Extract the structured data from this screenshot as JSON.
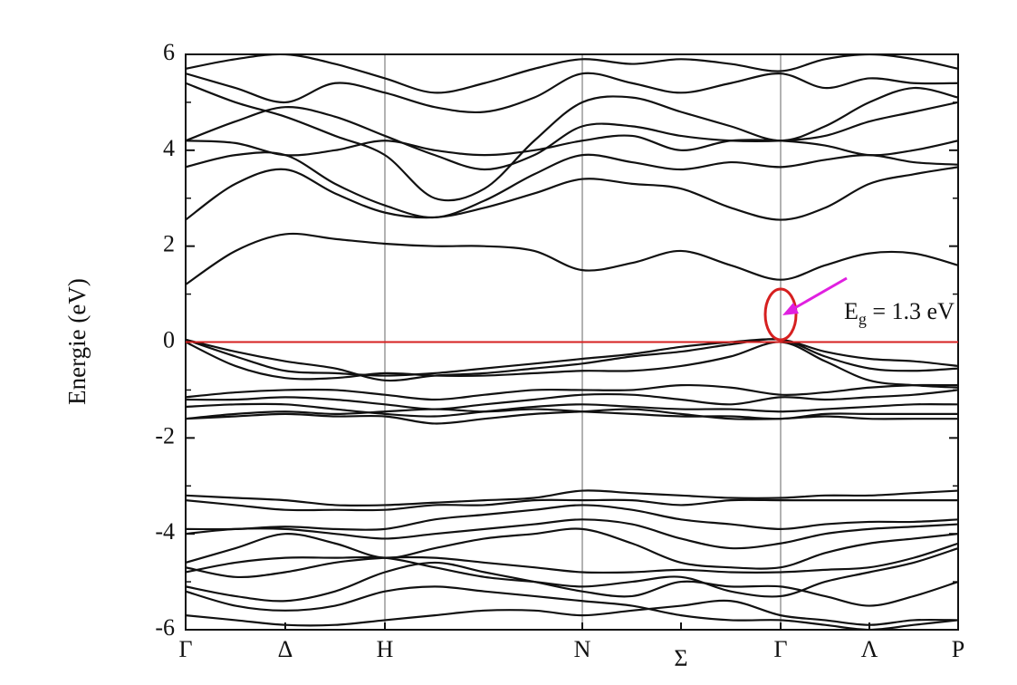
{
  "chart_data": {
    "type": "line",
    "y_label": "Energie (eV)",
    "xlim": [
      0,
      8.53
    ],
    "ylim": [
      -6,
      6
    ],
    "yticks": [
      -6,
      -4,
      -2,
      0,
      2,
      4,
      6
    ],
    "yminor": [
      -5,
      -3,
      -1,
      1,
      3,
      5
    ],
    "xticks": [
      {
        "value": 0,
        "label": "Γ"
      },
      {
        "value": 1.1,
        "label": "Δ"
      },
      {
        "value": 2.2,
        "label": "H"
      },
      {
        "value": 4.38,
        "label": "N"
      },
      {
        "value": 5.47,
        "label": "Σ"
      },
      {
        "value": 6.57,
        "label": "Γ"
      },
      {
        "value": 7.55,
        "label": "Λ"
      },
      {
        "value": 8.53,
        "label": "P"
      }
    ],
    "vlines": [
      2.2,
      4.38,
      6.57
    ],
    "reference_line": {
      "value": 0,
      "color": "#d62020"
    },
    "annotation": {
      "main": "E",
      "sub": "g",
      "rest": " = 1.3 eV",
      "color": "#e020e0",
      "circle_color": "#d62020"
    },
    "color": "#111111",
    "x": [
      0,
      0.55,
      1.1,
      1.65,
      2.2,
      2.75,
      3.3,
      3.85,
      4.38,
      4.93,
      5.47,
      6.02,
      6.57,
      7.06,
      7.55,
      8.04,
      8.53
    ],
    "series": [
      {
        "values": [
          1.2,
          1.9,
          2.25,
          2.15,
          2.05,
          2.0,
          2.0,
          1.9,
          1.5,
          1.65,
          1.9,
          1.6,
          1.3,
          1.6,
          1.85,
          1.85,
          1.6
        ]
      },
      {
        "values": [
          2.55,
          3.3,
          3.6,
          3.1,
          2.7,
          2.6,
          2.8,
          3.1,
          3.4,
          3.3,
          3.2,
          2.8,
          2.55,
          2.8,
          3.3,
          3.5,
          3.65
        ]
      },
      {
        "values": [
          3.65,
          3.9,
          3.9,
          3.3,
          2.85,
          2.6,
          2.95,
          3.5,
          3.9,
          3.75,
          3.6,
          3.75,
          3.65,
          3.8,
          3.9,
          3.75,
          3.7
        ]
      },
      {
        "values": [
          4.2,
          4.15,
          3.9,
          4.0,
          4.2,
          4.0,
          3.9,
          4.0,
          4.2,
          4.3,
          4.0,
          4.2,
          4.2,
          4.1,
          3.9,
          4.0,
          4.2
        ]
      },
      {
        "values": [
          4.2,
          4.6,
          4.9,
          4.7,
          4.3,
          3.9,
          3.6,
          3.9,
          4.5,
          4.5,
          4.3,
          4.2,
          4.2,
          4.3,
          4.6,
          4.8,
          5.0
        ]
      },
      {
        "values": [
          5.4,
          5.0,
          4.7,
          4.3,
          3.9,
          3.0,
          3.2,
          4.2,
          5.0,
          5.1,
          4.8,
          4.5,
          4.2,
          4.5,
          5.0,
          5.3,
          5.1
        ]
      },
      {
        "values": [
          5.6,
          5.3,
          5.0,
          5.4,
          5.2,
          4.9,
          4.8,
          5.1,
          5.6,
          5.4,
          5.2,
          5.4,
          5.6,
          5.3,
          5.5,
          5.4,
          5.4
        ]
      },
      {
        "values": [
          5.7,
          5.9,
          6.0,
          5.8,
          5.5,
          5.2,
          5.4,
          5.7,
          5.9,
          5.8,
          5.9,
          5.8,
          5.65,
          5.9,
          6.0,
          5.9,
          5.7
        ]
      },
      {
        "values": [
          0.05,
          -0.3,
          -0.6,
          -0.65,
          -0.7,
          -0.65,
          -0.55,
          -0.45,
          -0.35,
          -0.25,
          -0.1,
          0.0,
          0.05,
          -0.2,
          -0.35,
          -0.4,
          -0.5
        ]
      },
      {
        "values": [
          0.05,
          -0.2,
          -0.4,
          -0.55,
          -0.8,
          -0.7,
          -0.65,
          -0.55,
          -0.45,
          -0.3,
          -0.2,
          -0.05,
          0.05,
          -0.3,
          -0.55,
          -0.6,
          -0.55
        ]
      },
      {
        "values": [
          0.0,
          -0.5,
          -0.75,
          -0.75,
          -0.65,
          -0.7,
          -0.7,
          -0.65,
          -0.6,
          -0.6,
          -0.5,
          -0.3,
          0.0,
          -0.4,
          -0.8,
          -0.9,
          -0.95
        ]
      },
      {
        "values": [
          -1.15,
          -1.05,
          -1.0,
          -1.0,
          -1.1,
          -1.2,
          -1.1,
          -1.0,
          -1.0,
          -1.0,
          -0.9,
          -0.95,
          -1.1,
          -1.05,
          -0.95,
          -0.9,
          -0.9
        ]
      },
      {
        "values": [
          -1.2,
          -1.2,
          -1.15,
          -1.2,
          -1.3,
          -1.4,
          -1.3,
          -1.2,
          -1.1,
          -1.1,
          -1.2,
          -1.3,
          -1.15,
          -1.2,
          -1.15,
          -1.1,
          -1.0
        ]
      },
      {
        "values": [
          -1.35,
          -1.3,
          -1.3,
          -1.4,
          -1.5,
          -1.55,
          -1.45,
          -1.35,
          -1.3,
          -1.35,
          -1.4,
          -1.4,
          -1.45,
          -1.4,
          -1.35,
          -1.3,
          -1.3
        ]
      },
      {
        "values": [
          -1.6,
          -1.5,
          -1.45,
          -1.5,
          -1.45,
          -1.4,
          -1.45,
          -1.4,
          -1.45,
          -1.5,
          -1.55,
          -1.55,
          -1.6,
          -1.5,
          -1.5,
          -1.5,
          -1.5
        ]
      },
      {
        "values": [
          -1.6,
          -1.55,
          -1.5,
          -1.55,
          -1.55,
          -1.7,
          -1.6,
          -1.5,
          -1.45,
          -1.4,
          -1.5,
          -1.6,
          -1.6,
          -1.55,
          -1.6,
          -1.6,
          -1.6
        ]
      },
      {
        "values": [
          -3.2,
          -3.25,
          -3.3,
          -3.4,
          -3.4,
          -3.35,
          -3.3,
          -3.25,
          -3.1,
          -3.15,
          -3.2,
          -3.25,
          -3.25,
          -3.2,
          -3.2,
          -3.15,
          -3.1
        ]
      },
      {
        "values": [
          -3.3,
          -3.4,
          -3.5,
          -3.5,
          -3.5,
          -3.4,
          -3.4,
          -3.3,
          -3.3,
          -3.3,
          -3.4,
          -3.3,
          -3.3,
          -3.3,
          -3.3,
          -3.3,
          -3.3
        ]
      },
      {
        "values": [
          -3.9,
          -3.9,
          -3.85,
          -3.9,
          -3.9,
          -3.7,
          -3.6,
          -3.5,
          -3.4,
          -3.5,
          -3.7,
          -3.8,
          -3.9,
          -3.8,
          -3.75,
          -3.75,
          -3.7
        ]
      },
      {
        "values": [
          -4.0,
          -3.9,
          -3.9,
          -4.0,
          -4.1,
          -4.0,
          -3.9,
          -3.8,
          -3.7,
          -3.8,
          -4.1,
          -4.3,
          -4.2,
          -4.0,
          -3.9,
          -3.85,
          -3.8
        ]
      },
      {
        "values": [
          -4.6,
          -4.3,
          -4.0,
          -4.2,
          -4.5,
          -4.3,
          -4.1,
          -4.0,
          -3.9,
          -4.2,
          -4.6,
          -4.7,
          -4.7,
          -4.4,
          -4.2,
          -4.1,
          -4.0
        ]
      },
      {
        "values": [
          -4.7,
          -4.9,
          -4.8,
          -4.6,
          -4.5,
          -4.5,
          -4.6,
          -4.7,
          -4.8,
          -4.8,
          -4.75,
          -4.8,
          -4.8,
          -4.75,
          -4.7,
          -4.5,
          -4.2
        ]
      },
      {
        "values": [
          -4.8,
          -4.6,
          -4.5,
          -4.5,
          -4.5,
          -4.7,
          -4.9,
          -5.0,
          -5.1,
          -5.0,
          -4.9,
          -5.2,
          -5.3,
          -5.0,
          -4.8,
          -4.6,
          -4.3
        ]
      },
      {
        "values": [
          -5.1,
          -5.3,
          -5.4,
          -5.2,
          -4.8,
          -4.6,
          -4.8,
          -5.0,
          -5.2,
          -5.3,
          -5.0,
          -5.1,
          -5.1,
          -5.3,
          -5.5,
          -5.3,
          -5.0
        ]
      },
      {
        "values": [
          -5.7,
          -5.8,
          -5.9,
          -5.9,
          -5.8,
          -5.7,
          -5.6,
          -5.6,
          -5.7,
          -5.6,
          -5.5,
          -5.4,
          -5.7,
          -5.8,
          -5.9,
          -5.8,
          -5.8
        ]
      },
      {
        "values": [
          -5.2,
          -5.5,
          -5.6,
          -5.5,
          -5.2,
          -5.1,
          -5.2,
          -5.3,
          -5.4,
          -5.5,
          -5.7,
          -5.8,
          -5.8,
          -5.9,
          -6.0,
          -5.9,
          -5.8
        ]
      }
    ]
  }
}
